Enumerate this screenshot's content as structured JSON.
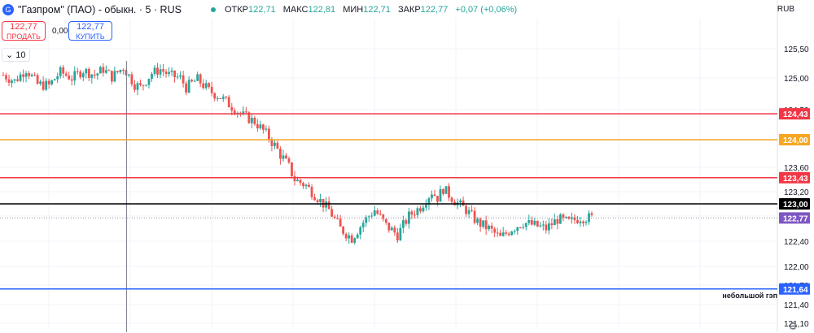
{
  "header": {
    "symbol_icon": "logo-icon",
    "title": "\"Газпром\" (ПАО) - обыкн. · 5 · RUS",
    "ohlc": [
      {
        "label": "ОТКР",
        "value": "122,71"
      },
      {
        "label": "МАКС",
        "value": "122,81"
      },
      {
        "label": "МИН",
        "value": "122,71"
      },
      {
        "label": "ЗАКР",
        "value": "122,77"
      }
    ],
    "change": "+0,07 (+0,06%)",
    "currency": "RUB"
  },
  "trade": {
    "sell_price": "122,77",
    "sell_label": "ПРОДАТЬ",
    "spread": "0,00",
    "buy_price": "122,77",
    "buy_label": "КУПИТЬ"
  },
  "indicators_toggle": "10",
  "annotation": "небольшой гэп",
  "colors": {
    "up": "#26a69a",
    "down": "#ef5350",
    "accent": "#2962ff"
  },
  "chart_data": {
    "type": "candlestick",
    "y_ticks": [
      "125,50",
      "125,00",
      "124,50",
      "124,00",
      "123,60",
      "123,20",
      "122,80",
      "122,40",
      "122,00",
      "121,70",
      "121,40",
      "121,10"
    ],
    "ylim": [
      121.0,
      125.7
    ],
    "grid": true,
    "horizontal_lines": [
      {
        "value": 124.43,
        "label": "124,43",
        "color": "#f23645"
      },
      {
        "value": 124.0,
        "label": "124,00",
        "color": "#f5a623"
      },
      {
        "value": 123.43,
        "label": "123,43",
        "color": "#f23645"
      },
      {
        "value": 123.0,
        "label": "123,00",
        "color": "#000000"
      },
      {
        "value": 121.64,
        "label": "121,64",
        "color": "#2962ff"
      }
    ],
    "last_price": {
      "value": 122.77,
      "label": "122,77",
      "color": "#7e57c2"
    },
    "close_path": [
      [
        0,
        125.05
      ],
      [
        4,
        124.95
      ],
      [
        8,
        125.15
      ],
      [
        12,
        124.9
      ],
      [
        16,
        124.88
      ],
      [
        20,
        125.1
      ],
      [
        24,
        125.0
      ],
      [
        28,
        125.13
      ],
      [
        32,
        125.05
      ],
      [
        35,
        125.15
      ],
      [
        38,
        125.02
      ],
      [
        42,
        125.18
      ],
      [
        46,
        124.9
      ],
      [
        48,
        124.85
      ],
      [
        52,
        125.08
      ],
      [
        55,
        125.15
      ],
      [
        58,
        125.05
      ],
      [
        62,
        125.0
      ],
      [
        64,
        124.85
      ],
      [
        68,
        124.98
      ],
      [
        72,
        124.8
      ],
      [
        76,
        124.7
      ],
      [
        80,
        124.55
      ],
      [
        84,
        124.4
      ],
      [
        88,
        124.3
      ],
      [
        92,
        124.1
      ],
      [
        96,
        123.85
      ],
      [
        100,
        123.6
      ],
      [
        102,
        123.4
      ],
      [
        106,
        123.3
      ],
      [
        110,
        123.1
      ],
      [
        114,
        122.9
      ],
      [
        118,
        122.6
      ],
      [
        122,
        122.45
      ],
      [
        126,
        122.7
      ],
      [
        130,
        122.9
      ],
      [
        134,
        122.65
      ],
      [
        138,
        122.5
      ],
      [
        142,
        122.8
      ],
      [
        146,
        122.95
      ],
      [
        150,
        123.2
      ],
      [
        152,
        123.1
      ],
      [
        154,
        123.25
      ],
      [
        158,
        123.05
      ],
      [
        162,
        122.9
      ],
      [
        166,
        122.7
      ],
      [
        170,
        122.6
      ],
      [
        174,
        122.45
      ],
      [
        178,
        122.6
      ],
      [
        182,
        122.7
      ],
      [
        186,
        122.65
      ],
      [
        190,
        122.6
      ],
      [
        194,
        122.75
      ],
      [
        198,
        122.7
      ],
      [
        202,
        122.78
      ],
      [
        206,
        122.77
      ]
    ],
    "n_candles": 207,
    "vline_index": 42
  }
}
